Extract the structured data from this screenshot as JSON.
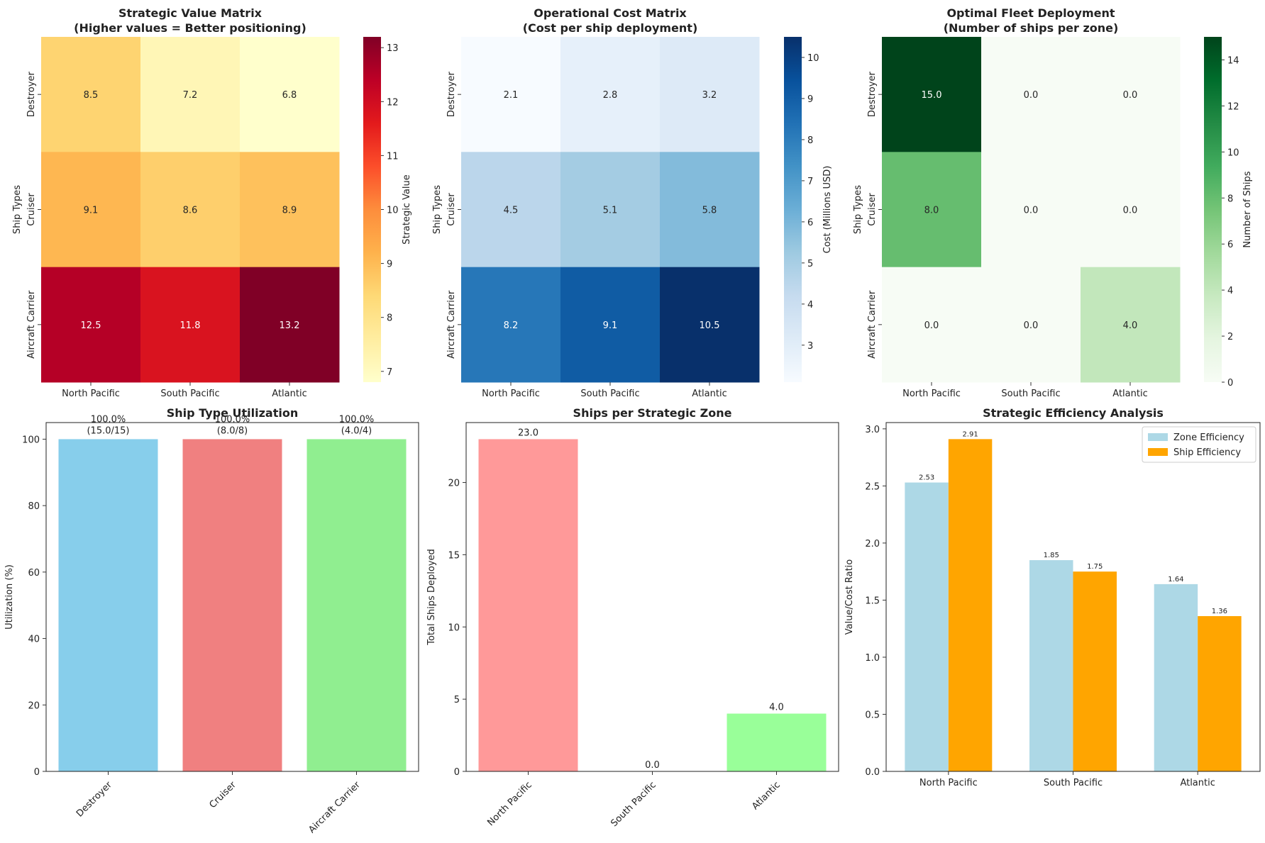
{
  "chart_data": [
    {
      "type": "heatmap",
      "title_lines": [
        "Strategic Value Matrix",
        "(Higher values = Better positioning)"
      ],
      "x_categories": [
        "North Pacific",
        "South Pacific",
        "Atlantic"
      ],
      "y_categories": [
        "Destroyer",
        "Cruiser",
        "Aircraft Carrier"
      ],
      "ylabel": "Ship Types",
      "values": [
        [
          8.5,
          7.2,
          6.8
        ],
        [
          9.1,
          8.6,
          8.9
        ],
        [
          12.5,
          11.8,
          13.2
        ]
      ],
      "colormap": "YlOrRd",
      "colorbar": {
        "label": "Strategic Value",
        "range": [
          6.8,
          13.2
        ],
        "ticks": [
          7,
          8,
          9,
          10,
          11,
          12,
          13
        ]
      }
    },
    {
      "type": "heatmap",
      "title_lines": [
        "Operational Cost Matrix",
        "(Cost per ship deployment)"
      ],
      "x_categories": [
        "North Pacific",
        "South Pacific",
        "Atlantic"
      ],
      "y_categories": [
        "Destroyer",
        "Cruiser",
        "Aircraft Carrier"
      ],
      "ylabel": "Ship Types",
      "values": [
        [
          2.1,
          2.8,
          3.2
        ],
        [
          4.5,
          5.1,
          5.8
        ],
        [
          8.2,
          9.1,
          10.5
        ]
      ],
      "colormap": "Blues",
      "colorbar": {
        "label": "Cost (Millions USD)",
        "range": [
          2.1,
          10.5
        ],
        "ticks": [
          3,
          4,
          5,
          6,
          7,
          8,
          9,
          10
        ]
      }
    },
    {
      "type": "heatmap",
      "title_lines": [
        "Optimal Fleet Deployment",
        "(Number of ships per zone)"
      ],
      "x_categories": [
        "North Pacific",
        "South Pacific",
        "Atlantic"
      ],
      "y_categories": [
        "Destroyer",
        "Cruiser",
        "Aircraft Carrier"
      ],
      "ylabel": "Ship Types",
      "values": [
        [
          15.0,
          0.0,
          0.0
        ],
        [
          8.0,
          0.0,
          0.0
        ],
        [
          0.0,
          0.0,
          4.0
        ]
      ],
      "colormap": "Greens",
      "colorbar": {
        "label": "Number of Ships",
        "range": [
          0,
          15
        ],
        "ticks": [
          0,
          2,
          4,
          6,
          8,
          10,
          12,
          14
        ]
      }
    },
    {
      "type": "bar",
      "title": "Ship Type Utilization",
      "categories": [
        "Destroyer",
        "Cruiser",
        "Aircraft Carrier"
      ],
      "values": [
        100.0,
        100.0,
        100.0
      ],
      "labels": [
        [
          "100.0%",
          "(15.0/15)"
        ],
        [
          "100.0%",
          "(8.0/8)"
        ],
        [
          "100.0%",
          "(4.0/4)"
        ]
      ],
      "colors": [
        "#87ceeb",
        "#f08080",
        "#90ee90"
      ],
      "ylabel": "Utilization (%)",
      "ylim": [
        0,
        105
      ],
      "yticks": [
        0,
        20,
        40,
        60,
        80,
        100
      ]
    },
    {
      "type": "bar",
      "title": "Ships per Strategic Zone",
      "categories": [
        "North Pacific",
        "South Pacific",
        "Atlantic"
      ],
      "values": [
        23.0,
        0.0,
        4.0
      ],
      "labels": [
        "23.0",
        "0.0",
        "4.0"
      ],
      "colors": [
        "#ff9999",
        "#66b3ff",
        "#99ff99"
      ],
      "ylabel": "Total Ships Deployed",
      "ylim": [
        0,
        24.15
      ],
      "yticks": [
        0,
        5,
        10,
        15,
        20
      ]
    },
    {
      "type": "bar",
      "title": "Strategic Efficiency Analysis",
      "categories": [
        "North Pacific",
        "South Pacific",
        "Atlantic"
      ],
      "series": [
        {
          "name": "Zone Efficiency",
          "values": [
            2.53,
            1.85,
            1.64
          ],
          "labels": [
            "2.53",
            "1.85",
            "1.64"
          ],
          "color": "#add8e6"
        },
        {
          "name": "Ship Efficiency",
          "values": [
            2.91,
            1.75,
            1.36
          ],
          "labels": [
            "2.91",
            "1.75",
            "1.36"
          ],
          "color": "#ffa500"
        }
      ],
      "ylabel": "Value/Cost Ratio",
      "ylim": [
        0,
        3.055
      ],
      "yticks": [
        "0.0",
        "0.5",
        "1.0",
        "1.5",
        "2.0",
        "2.5",
        "3.0"
      ],
      "legend": "top-right"
    }
  ]
}
